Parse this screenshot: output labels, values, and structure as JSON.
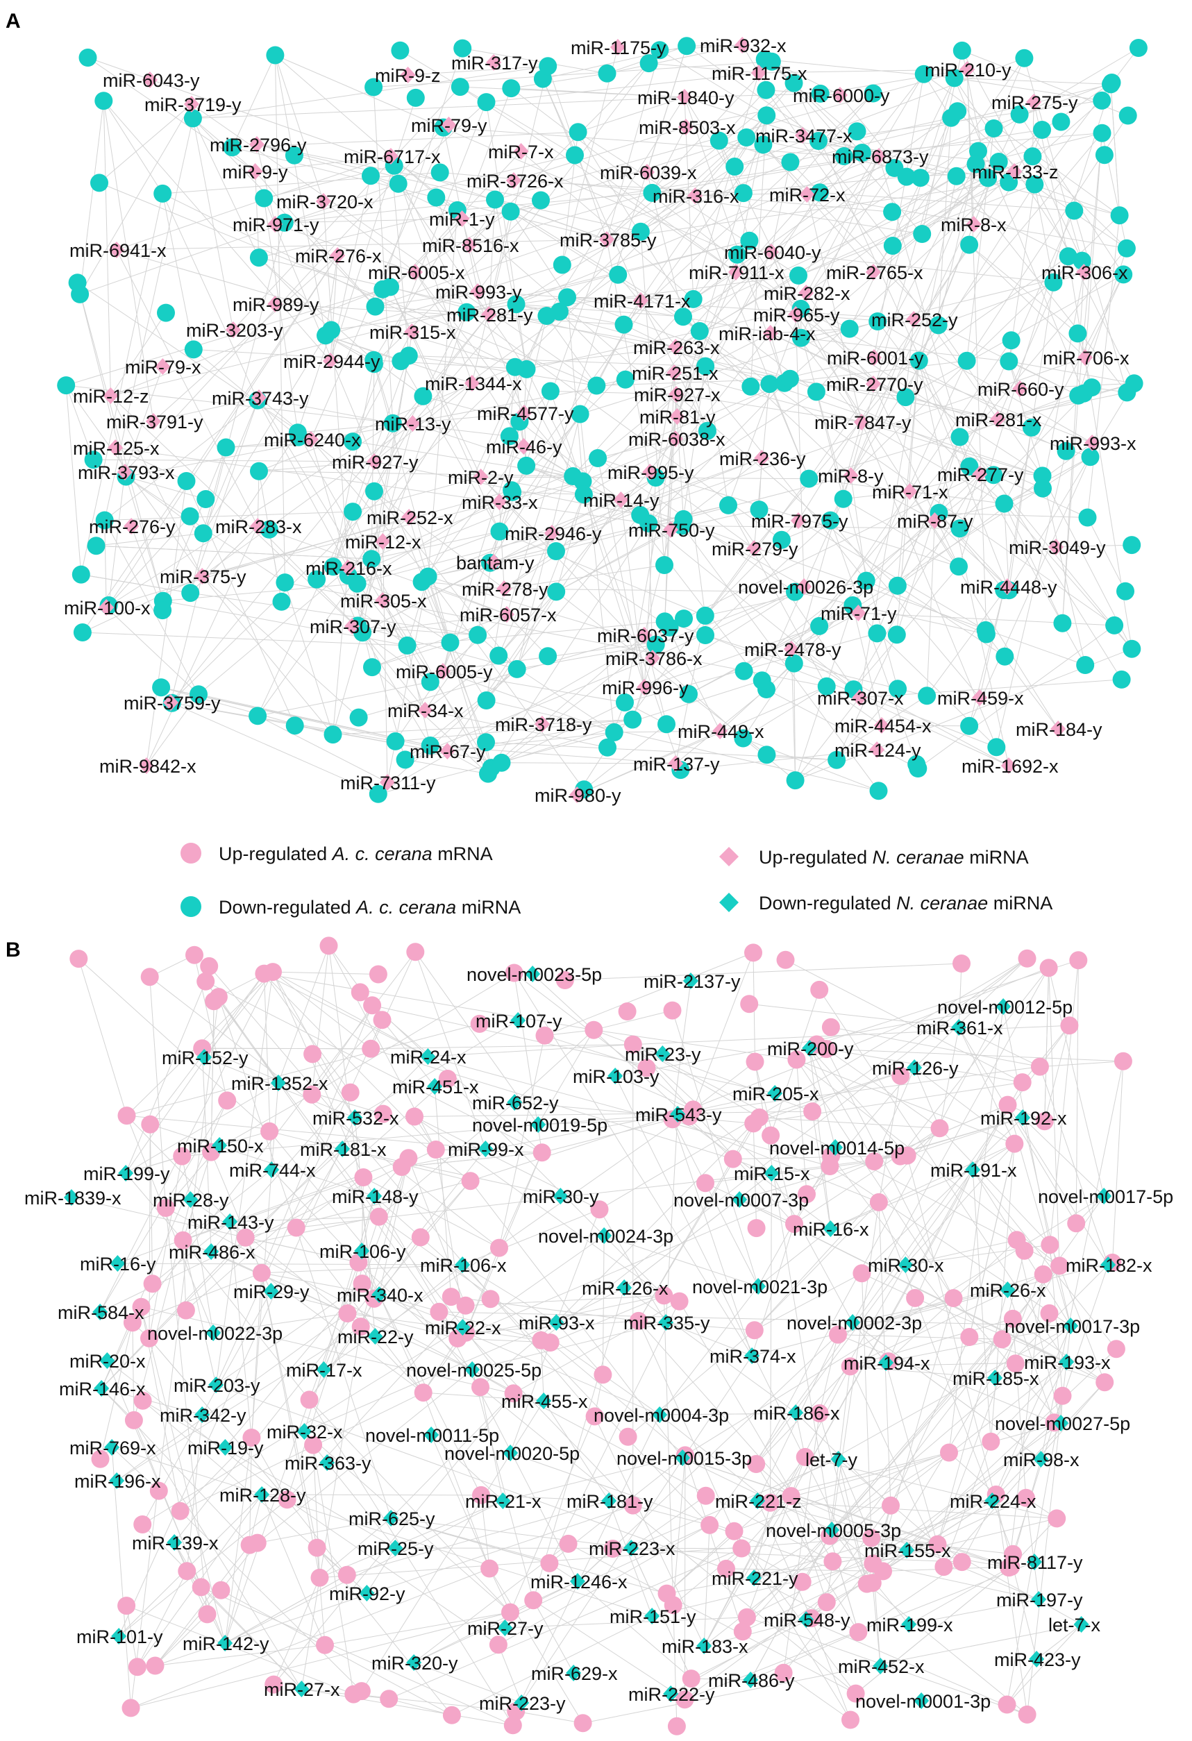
{
  "colors": {
    "pink": "#f4a6c8",
    "teal": "#17cec4",
    "edge": "#d4d4d4"
  },
  "panel_a": {
    "letter": "A",
    "labels": [
      "miR-6043-y",
      "miR-9-z",
      "miR-317-y",
      "miR-1175-y",
      "miR-932-x",
      "miR-1175-x",
      "miR-210-y",
      "miR-3719-y",
      "miR-1840-y",
      "miR-6000-y",
      "miR-275-y",
      "miR-79-y",
      "miR-8503-x",
      "miR-3477-x",
      "miR-2796-y",
      "miR-6717-x",
      "miR-7-x",
      "miR-6873-y",
      "miR-9-y",
      "miR-3726-x",
      "miR-6039-x",
      "miR-133-z",
      "miR-3720-x",
      "miR-316-x",
      "miR-72-x",
      "miR-971-y",
      "miR-1-y",
      "miR-8-x",
      "miR-6941-x",
      "miR-8516-x",
      "miR-3785-y",
      "miR-276-x",
      "miR-6040-y",
      "miR-6005-x",
      "miR-7911-x",
      "miR-2765-x",
      "miR-306-x",
      "miR-993-y",
      "miR-282-x",
      "miR-989-y",
      "miR-4171-x",
      "miR-965-y",
      "miR-281-y",
      "miR-252-y",
      "miR-3203-y",
      "miR-315-x",
      "miR-iab-4-x",
      "miR-263-x",
      "miR-6001-y",
      "miR-706-x",
      "miR-79-x",
      "miR-2944-y",
      "miR-251-x",
      "miR-1344-x",
      "miR-2770-y",
      "miR-660-y",
      "miR-12-z",
      "miR-3743-y",
      "miR-927-x",
      "miR-4577-y",
      "miR-81-y",
      "miR-3791-y",
      "miR-13-y",
      "miR-7847-y",
      "miR-281-x",
      "miR-6038-x",
      "miR-125-x",
      "miR-6240-x",
      "miR-46-y",
      "miR-993-x",
      "miR-236-y",
      "miR-927-y",
      "miR-3793-x",
      "miR-995-y",
      "miR-277-y",
      "miR-2-y",
      "miR-8-y",
      "miR-71-x",
      "miR-14-y",
      "miR-33-x",
      "miR-276-y",
      "miR-283-x",
      "miR-252-x",
      "miR-7975-y",
      "miR-87-y",
      "miR-2946-y",
      "miR-750-y",
      "miR-12-x",
      "miR-3049-y",
      "miR-279-y",
      "bantam-y",
      "miR-216-x",
      "miR-375-y",
      "miR-278-y",
      "novel-m0026-3p",
      "miR-4448-y",
      "miR-305-x",
      "miR-100-x",
      "miR-6057-x",
      "miR-71-y",
      "miR-307-y",
      "miR-6037-y",
      "miR-2478-y",
      "miR-3786-x",
      "miR-6005-y",
      "miR-996-y",
      "miR-307-x",
      "miR-459-x",
      "miR-3759-y",
      "miR-34-x",
      "miR-3718-y",
      "miR-449-x",
      "miR-4454-x",
      "miR-184-y",
      "miR-67-y",
      "miR-124-y",
      "miR-9842-x",
      "miR-137-y",
      "miR-1692-x",
      "miR-7311-y",
      "miR-980-y"
    ]
  },
  "panel_b": {
    "letter": "B",
    "labels": [
      "novel-m0023-5p",
      "miR-2137-y",
      "novel-m0012-5p",
      "miR-107-y",
      "miR-361-x",
      "miR-152-y",
      "miR-24-x",
      "miR-23-y",
      "miR-200-y",
      "miR-1352-x",
      "miR-103-y",
      "miR-126-y",
      "miR-451-x",
      "miR-652-y",
      "miR-205-x",
      "miR-532-x",
      "miR-543-y",
      "miR-192-x",
      "novel-m0019-5p",
      "miR-150-x",
      "miR-181-x",
      "miR-99-x",
      "novel-m0014-5p",
      "miR-199-y",
      "miR-744-x",
      "miR-15-x",
      "miR-191-x",
      "miR-1839-x",
      "miR-28-y",
      "miR-148-y",
      "miR-30-y",
      "novel-m0007-3p",
      "novel-m0017-5p",
      "miR-143-y",
      "miR-16-x",
      "novel-m0024-3p",
      "miR-16-y",
      "miR-486-x",
      "miR-106-y",
      "miR-106-x",
      "miR-30-x",
      "miR-182-x",
      "miR-29-y",
      "miR-126-x",
      "novel-m0021-3p",
      "miR-26-x",
      "miR-340-x",
      "miR-584-x",
      "miR-93-x",
      "miR-335-y",
      "novel-m0002-3p",
      "novel-m0017-3p",
      "novel-m0022-3p",
      "miR-22-x",
      "miR-22-y",
      "miR-374-x",
      "miR-193-x",
      "miR-20-x",
      "miR-17-x",
      "novel-m0025-5p",
      "miR-194-x",
      "miR-185-x",
      "miR-146-x",
      "miR-203-y",
      "miR-455-x",
      "miR-342-y",
      "novel-m0004-3p",
      "miR-186-x",
      "novel-m0027-5p",
      "miR-32-x",
      "novel-m0011-5p",
      "miR-769-x",
      "miR-19-y",
      "novel-m0020-5p",
      "novel-m0015-3p",
      "let-7-y",
      "miR-98-x",
      "miR-363-y",
      "miR-196-x",
      "miR-128-y",
      "miR-21-x",
      "miR-181-y",
      "miR-221-z",
      "miR-224-x",
      "miR-625-y",
      "novel-m0005-3p",
      "miR-139-x",
      "miR-25-y",
      "miR-223-x",
      "miR-155-x",
      "miR-8117-y",
      "miR-1246-x",
      "miR-221-y",
      "miR-92-y",
      "miR-197-y",
      "miR-151-y",
      "miR-548-y",
      "miR-27-y",
      "miR-199-x",
      "let-7-x",
      "miR-101-y",
      "miR-142-y",
      "miR-183-x",
      "miR-423-y",
      "miR-452-x",
      "miR-320-y",
      "miR-629-x",
      "miR-486-y",
      "miR-27-x",
      "miR-222-y",
      "novel-m0001-3p",
      "miR-223-y"
    ]
  },
  "legend": {
    "up_mrna_pre": "Up-regulated ",
    "up_mrna_species": "A. c. cerana",
    "up_mrna_post": " mRNA",
    "down_mirna_pre": "Down-regulated ",
    "down_mirna_species": "A. c. cerana",
    "down_mirna_post": " miRNA",
    "up_nc_pre": "Up-regulated ",
    "up_nc_species": "N. ceranae",
    "up_nc_post": " miRNA",
    "down_nc_pre": "Down-regulated ",
    "down_nc_species": "N. ceranae",
    "down_nc_post": " miRNA"
  }
}
